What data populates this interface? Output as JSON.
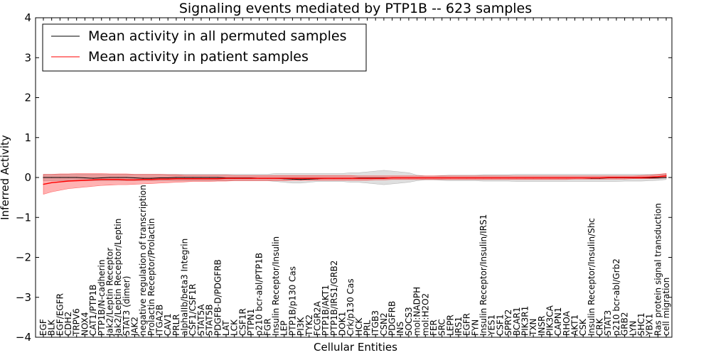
{
  "chart_data": {
    "type": "line",
    "title": "Signaling events mediated by PTP1B -- 623 samples",
    "xlabel": "Cellular Entities",
    "ylabel": "Inferred Activity",
    "ylim": [
      -4,
      4
    ],
    "yticks": [
      -4,
      -3,
      -2,
      -1,
      0,
      1,
      2,
      3,
      4
    ],
    "ytick_labels": [
      "−4",
      "−3",
      "−2",
      "−1",
      "0",
      "1",
      "2",
      "3",
      "4"
    ],
    "grid": false,
    "legend_position": "top-left",
    "legend": [
      {
        "label": "Mean activity in all permuted samples",
        "color": "#000000"
      },
      {
        "label": "Mean activity in patient samples",
        "color": "#ff0000"
      }
    ],
    "categories": [
      "EGF",
      "BLK",
      "EGF/EGFR",
      "CDH2",
      "TRPV6",
      "NOX4",
      "CAT1/PTP1B",
      "PTP1B/N-cadherin",
      "Jak2/Leptin Receptor",
      "Jak2/Leptin Receptor/Leptin",
      "STAT3 (dimer)",
      "JAK2",
      "negative regulation of transcription",
      "Prolactin Receptor/Prolactin",
      "ITGA2B",
      "CAV1",
      "PRLR",
      "alphaIIb/beta3 Integrin",
      "CSF1/CSF1R",
      "STAT5A",
      "STAT5B",
      "PDGFB-D/PDGFRB",
      "LAT",
      "LCK",
      "CSF1R",
      "PTPN1",
      "p210 bcr-abl/PTP1B",
      "FGR",
      "Insulin Receptor/Insulin",
      "LEP",
      "PTP1B/p130 Cas",
      "PI3K",
      "TYK2",
      "FCGR2A",
      "PTP1B/AKT1",
      "PTP1B/IRS1/GRB2",
      "DOK1",
      "Crk/p130 Cas",
      "HCK",
      "PRL",
      "ITGB3",
      "CSN2",
      "PDGFRB",
      "INS",
      "SOCS3",
      "mol:NADPH",
      "mol:H2O2",
      "FER",
      "SRC",
      "LEPR",
      "IRS1",
      "EGFR",
      "FYN",
      "Insulin Receptor/Insulin/IRS1",
      "YES1",
      "CSF1",
      "SPRY2",
      "BCAR1",
      "PIK3R1",
      "TXN",
      "INSR",
      "PIK3CA",
      "CAPN1",
      "RHOA",
      "AKT1",
      "CSK",
      "Insulin Receptor/Insulin/Shc",
      "CRK",
      "STAT3",
      "p210 bcr-abl/Grb2",
      "GRB2",
      "LYN",
      "SHC1",
      "YBX1",
      "Ras protein signal transduction",
      "cell migration"
    ],
    "series": [
      {
        "name": "Mean activity in all permuted samples",
        "color": "#000000",
        "values": [
          0.0,
          0.0,
          0.0,
          0.0,
          0.0,
          -0.01,
          -0.02,
          -0.01,
          0.0,
          0.0,
          0.0,
          -0.01,
          -0.02,
          -0.02,
          -0.01,
          -0.01,
          0.0,
          0.0,
          0.0,
          0.0,
          0.0,
          0.0,
          -0.01,
          -0.01,
          -0.01,
          -0.01,
          -0.02,
          -0.02,
          -0.02,
          -0.03,
          -0.04,
          -0.05,
          -0.04,
          -0.03,
          -0.02,
          -0.02,
          -0.02,
          -0.02,
          -0.01,
          -0.01,
          -0.01,
          -0.01,
          -0.01,
          -0.01,
          -0.01,
          -0.01,
          -0.01,
          -0.01,
          -0.01,
          -0.01,
          -0.01,
          -0.01,
          -0.01,
          -0.01,
          -0.01,
          -0.01,
          -0.01,
          -0.01,
          -0.01,
          -0.01,
          -0.01,
          -0.01,
          -0.01,
          -0.01,
          -0.01,
          -0.01,
          -0.02,
          -0.02,
          -0.01,
          -0.01,
          -0.01,
          -0.01,
          -0.01,
          -0.01,
          -0.01,
          0.0
        ],
        "band_low": [
          -0.08,
          -0.08,
          -0.08,
          -0.08,
          -0.08,
          -0.08,
          -0.08,
          -0.08,
          -0.08,
          -0.08,
          -0.08,
          -0.08,
          -0.08,
          -0.08,
          -0.08,
          -0.08,
          -0.08,
          -0.08,
          -0.08,
          -0.08,
          -0.08,
          -0.08,
          -0.08,
          -0.08,
          -0.08,
          -0.08,
          -0.08,
          -0.08,
          -0.1,
          -0.12,
          -0.14,
          -0.14,
          -0.12,
          -0.1,
          -0.1,
          -0.1,
          -0.1,
          -0.12,
          -0.12,
          -0.14,
          -0.16,
          -0.18,
          -0.16,
          -0.14,
          -0.12,
          -0.08,
          -0.06,
          -0.06,
          -0.07,
          -0.08,
          -0.08,
          -0.08,
          -0.08,
          -0.09,
          -0.09,
          -0.09,
          -0.09,
          -0.1,
          -0.1,
          -0.1,
          -0.1,
          -0.1,
          -0.1,
          -0.1,
          -0.1,
          -0.1,
          -0.1,
          -0.1,
          -0.1,
          -0.1,
          -0.09,
          -0.09,
          -0.09,
          -0.08,
          -0.07,
          -0.05
        ],
        "band_high": [
          0.08,
          0.08,
          0.08,
          0.08,
          0.08,
          0.08,
          0.08,
          0.08,
          0.08,
          0.08,
          0.08,
          0.08,
          0.08,
          0.08,
          0.08,
          0.08,
          0.08,
          0.08,
          0.08,
          0.08,
          0.08,
          0.08,
          0.08,
          0.08,
          0.08,
          0.08,
          0.08,
          0.08,
          0.1,
          0.1,
          0.1,
          0.1,
          0.1,
          0.1,
          0.1,
          0.1,
          0.1,
          0.12,
          0.12,
          0.14,
          0.16,
          0.18,
          0.16,
          0.14,
          0.12,
          0.06,
          0.04,
          0.04,
          0.05,
          0.06,
          0.06,
          0.06,
          0.06,
          0.07,
          0.07,
          0.07,
          0.07,
          0.08,
          0.08,
          0.08,
          0.08,
          0.08,
          0.08,
          0.08,
          0.08,
          0.08,
          0.08,
          0.08,
          0.08,
          0.08,
          0.08,
          0.08,
          0.08,
          0.08,
          0.08,
          0.09
        ]
      },
      {
        "name": "Mean activity in patient samples",
        "color": "#ff0000",
        "values": [
          -0.17,
          -0.13,
          -0.11,
          -0.09,
          -0.08,
          -0.07,
          -0.06,
          -0.05,
          -0.05,
          -0.05,
          -0.06,
          -0.06,
          -0.05,
          -0.05,
          -0.04,
          -0.04,
          -0.03,
          -0.03,
          -0.03,
          -0.03,
          -0.03,
          -0.03,
          -0.02,
          -0.02,
          -0.02,
          -0.02,
          -0.02,
          -0.02,
          -0.02,
          -0.02,
          -0.02,
          -0.02,
          -0.02,
          -0.02,
          -0.02,
          -0.02,
          -0.02,
          -0.02,
          -0.02,
          -0.02,
          -0.02,
          -0.02,
          -0.01,
          -0.01,
          -0.01,
          -0.01,
          -0.01,
          -0.01,
          -0.01,
          -0.01,
          -0.01,
          -0.01,
          -0.01,
          -0.01,
          -0.01,
          -0.01,
          -0.01,
          -0.01,
          -0.01,
          -0.01,
          -0.01,
          -0.01,
          -0.01,
          -0.01,
          -0.01,
          -0.01,
          -0.01,
          -0.01,
          0.0,
          0.0,
          0.0,
          0.0,
          0.0,
          0.01,
          0.02,
          0.04
        ],
        "band_low": [
          -0.42,
          -0.36,
          -0.32,
          -0.28,
          -0.26,
          -0.24,
          -0.22,
          -0.2,
          -0.19,
          -0.18,
          -0.18,
          -0.17,
          -0.16,
          -0.15,
          -0.14,
          -0.13,
          -0.12,
          -0.11,
          -0.1,
          -0.1,
          -0.1,
          -0.09,
          -0.09,
          -0.08,
          -0.08,
          -0.08,
          -0.08,
          -0.08,
          -0.08,
          -0.08,
          -0.07,
          -0.07,
          -0.07,
          -0.07,
          -0.07,
          -0.07,
          -0.07,
          -0.07,
          -0.07,
          -0.07,
          -0.06,
          -0.06,
          -0.05,
          -0.05,
          -0.05,
          -0.05,
          -0.05,
          -0.05,
          -0.05,
          -0.05,
          -0.05,
          -0.05,
          -0.05,
          -0.05,
          -0.05,
          -0.05,
          -0.05,
          -0.05,
          -0.05,
          -0.05,
          -0.05,
          -0.05,
          -0.05,
          -0.05,
          -0.04,
          -0.04,
          -0.04,
          -0.04,
          -0.04,
          -0.04,
          -0.04,
          -0.03,
          -0.03,
          -0.03,
          -0.02,
          -0.01
        ],
        "band_high": [
          0.08,
          0.08,
          0.09,
          0.09,
          0.1,
          0.1,
          0.1,
          0.1,
          0.09,
          0.09,
          0.09,
          0.08,
          0.08,
          0.08,
          0.08,
          0.07,
          0.07,
          0.06,
          0.06,
          0.06,
          0.06,
          0.06,
          0.06,
          0.05,
          0.05,
          0.05,
          0.05,
          0.05,
          0.05,
          0.05,
          0.05,
          0.05,
          0.05,
          0.05,
          0.05,
          0.05,
          0.05,
          0.05,
          0.04,
          0.04,
          0.04,
          0.04,
          0.04,
          0.04,
          0.04,
          0.04,
          0.04,
          0.04,
          0.04,
          0.04,
          0.04,
          0.04,
          0.04,
          0.04,
          0.04,
          0.04,
          0.04,
          0.04,
          0.04,
          0.04,
          0.04,
          0.04,
          0.04,
          0.04,
          0.04,
          0.04,
          0.04,
          0.04,
          0.04,
          0.04,
          0.04,
          0.04,
          0.05,
          0.06,
          0.08,
          0.1
        ]
      }
    ]
  }
}
